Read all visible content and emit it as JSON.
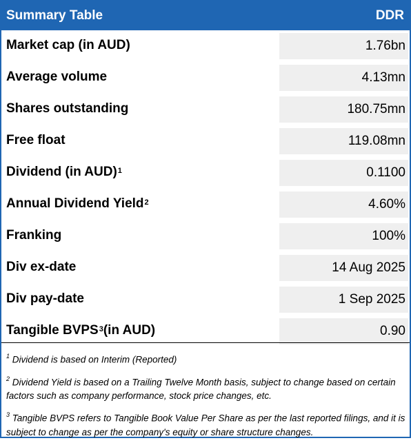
{
  "header": {
    "title": "Summary Table",
    "ticker": "DDR"
  },
  "rows": [
    {
      "label": "Market cap (in AUD)",
      "sup": "",
      "label_suffix": "",
      "value": "1.76bn"
    },
    {
      "label": "Average volume",
      "sup": "",
      "label_suffix": "",
      "value": "4.13mn"
    },
    {
      "label": "Shares outstanding",
      "sup": "",
      "label_suffix": "",
      "value": "180.75mn"
    },
    {
      "label": "Free float",
      "sup": "",
      "label_suffix": "",
      "value": "119.08mn"
    },
    {
      "label": "Dividend (in AUD)",
      "sup": "1",
      "label_suffix": "",
      "value": "0.1100"
    },
    {
      "label": "Annual Dividend Yield",
      "sup": "2",
      "label_suffix": "",
      "value": "4.60%"
    },
    {
      "label": "Franking",
      "sup": "",
      "label_suffix": "",
      "value": "100%"
    },
    {
      "label": "Div ex-date",
      "sup": "",
      "label_suffix": "",
      "value": "14 Aug 2025"
    },
    {
      "label": "Div pay-date",
      "sup": "",
      "label_suffix": "",
      "value": "1 Sep 2025"
    },
    {
      "label": "Tangible BVPS",
      "sup": "3",
      "label_suffix": " (in AUD)",
      "value": "0.90"
    }
  ],
  "footnotes": [
    {
      "mark": "1",
      "text": " Dividend is based on Interim (Reported)"
    },
    {
      "mark": "2",
      "text": " Dividend Yield is based on a Trailing Twelve Month basis, subject to change based on certain factors such as company performance, stock price changes, etc."
    },
    {
      "mark": "3",
      "text": " Tangible BVPS refers to Tangible Book Value Per Share as per the last reported filings, and it is subject to change as per the company's equity or share structure changes."
    }
  ],
  "colors": {
    "header_bg": "#1f66b3",
    "value_bg": "#efefef"
  }
}
